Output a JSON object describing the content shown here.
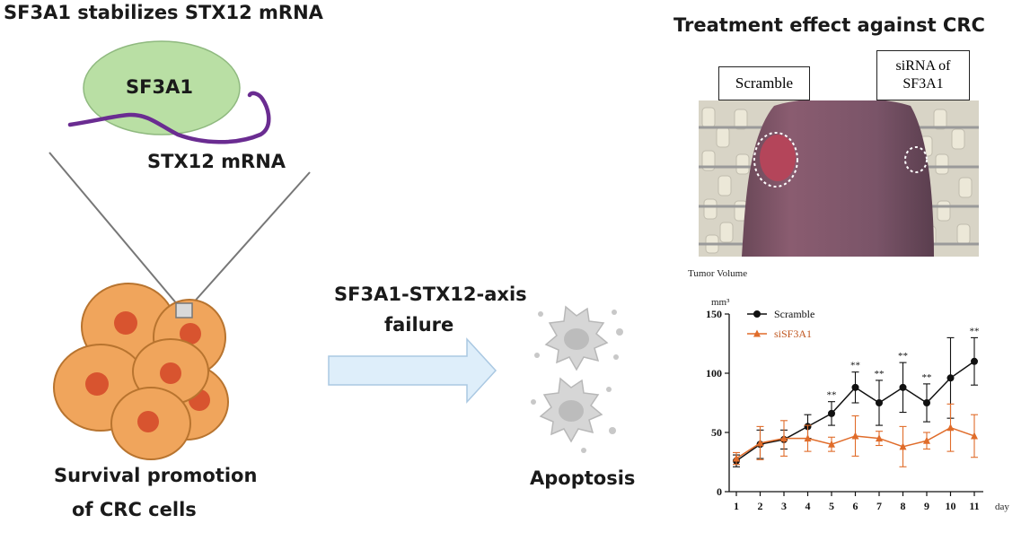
{
  "left_panel": {
    "title": "SF3A1 stabilizes STX12 mRNA",
    "protein_label": "SF3A1",
    "mrna_label": "STX12 mRNA",
    "caption_line1": "Survival promotion",
    "caption_line2": "of CRC cells",
    "colors": {
      "protein_fill": "#b9dfa4",
      "mrna_strand": "#6a2c91",
      "cell_fill": "#f0a55c",
      "nucleus": "#d8542f"
    }
  },
  "middle_panel": {
    "arrow_label_line1": "SF3A1-STX12-axis",
    "arrow_label_line2": "failure",
    "outcome_label": "Apoptosis",
    "colors": {
      "arrow_fill": "#deeefa",
      "apoptotic_cell": "#cfcfcf"
    }
  },
  "right_panel": {
    "title": "Treatment effect against CRC",
    "photo_label_left": "Scramble",
    "photo_label_right_line1": "siRNA of",
    "photo_label_right_line2": "SF3A1"
  },
  "chart_data": {
    "type": "line",
    "title": "Tumor Volume",
    "ylabel": "mm³",
    "xlabel": "day",
    "x": [
      1,
      2,
      3,
      4,
      5,
      6,
      7,
      8,
      9,
      10,
      11
    ],
    "ylim": [
      0,
      150
    ],
    "yticks": [
      0,
      50,
      100,
      150
    ],
    "legend_position": "top-left",
    "series": [
      {
        "name": "Scramble",
        "color": "#111111",
        "marker": "circle",
        "values": [
          26,
          40,
          44,
          55,
          66,
          88,
          75,
          88,
          75,
          96,
          110
        ],
        "errors": [
          5,
          12,
          8,
          10,
          10,
          13,
          19,
          21,
          16,
          34,
          20
        ]
      },
      {
        "name": "siSF3A1",
        "color": "#e06c2a",
        "marker": "triangle",
        "values": [
          28,
          41,
          45,
          45,
          40,
          47,
          45,
          38,
          43,
          54,
          47
        ],
        "errors": [
          5,
          14,
          15,
          11,
          6,
          17,
          6,
          17,
          7,
          20,
          18
        ]
      }
    ],
    "significance": [
      {
        "x": 5,
        "label": "**"
      },
      {
        "x": 6,
        "label": "**"
      },
      {
        "x": 7,
        "label": "**"
      },
      {
        "x": 8,
        "label": "**"
      },
      {
        "x": 9,
        "label": "**"
      },
      {
        "x": 11,
        "label": "**"
      }
    ]
  }
}
